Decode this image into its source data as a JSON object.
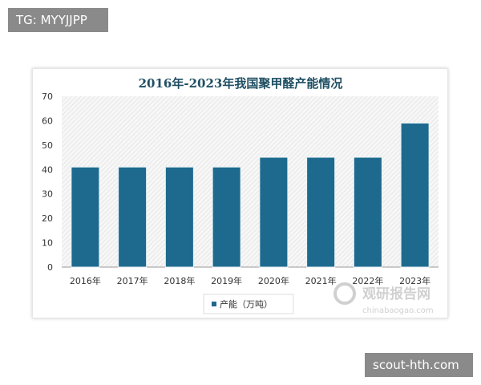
{
  "overlay": {
    "top_left": "TG: MYYJJPP",
    "bottom_right": "scout-hth.com"
  },
  "watermark": {
    "name": "观研报告网",
    "url": "chinabaogao.com"
  },
  "chart_data": {
    "type": "bar",
    "title": "2016年-2023年我国聚甲醛产能情况",
    "categories": [
      "2016年",
      "2017年",
      "2018年",
      "2019年",
      "2020年",
      "2021年",
      "2022年",
      "2023年"
    ],
    "series": [
      {
        "name": "产能（万吨）",
        "values": [
          41,
          41,
          41,
          41,
          45,
          45,
          45,
          59
        ]
      }
    ],
    "ylim": [
      0,
      70
    ],
    "yticks": [
      0,
      10,
      20,
      30,
      40,
      50,
      60,
      70
    ],
    "grid": false,
    "legend": "bottom",
    "colors": {
      "bar": "#1d6a8e",
      "title": "#1f4f63"
    }
  }
}
